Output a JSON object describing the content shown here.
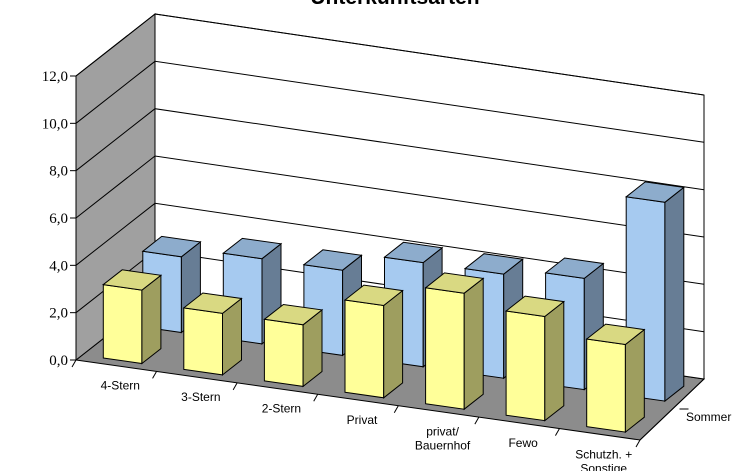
{
  "chart_data": {
    "type": "bar",
    "title": "Unterkunftsarten",
    "categories": [
      "4-Stern",
      "3-Stern",
      "2-Stern",
      "Privat",
      "privat/\nBauernhof",
      "Fewo",
      "Schutzh. +\nSonstige"
    ],
    "series": [
      {
        "name": "",
        "values": [
          3.1,
          2.6,
          2.6,
          3.9,
          4.9,
          4.4,
          3.7
        ]
      },
      {
        "name": "Sommer",
        "values": [
          3.2,
          3.6,
          3.6,
          4.4,
          4.4,
          4.7,
          8.4
        ]
      }
    ],
    "y_tick_labels": [
      "0,0",
      "2,0",
      "4,0",
      "6,0",
      "8,0",
      "10,0",
      "12,0"
    ],
    "ylim": [
      0,
      12
    ],
    "depth_labels": [
      "Sommer"
    ],
    "grid": true,
    "colors": {
      "front_bar": "#ffff99",
      "back_bar": "#a6caf0",
      "back_wall": "#ffffff",
      "side_wall": "#a0a0a0",
      "floor": "#8c8c8c"
    }
  }
}
